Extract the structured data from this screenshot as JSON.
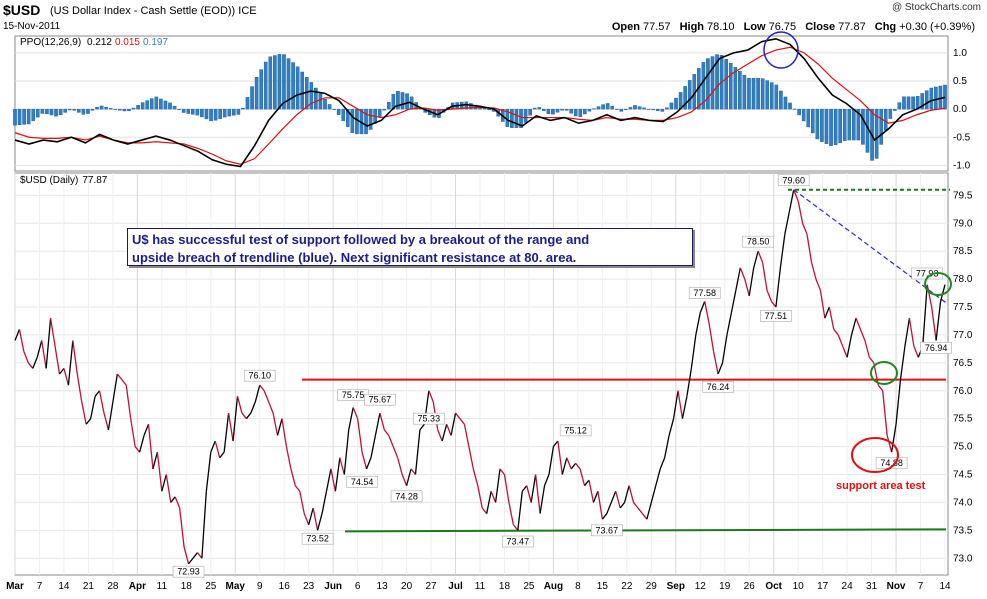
{
  "header": {
    "symbol": "$USD",
    "description": "(US Dollar Index - Cash Settle (EOD)) ICE",
    "date": "15-Nov-2011",
    "watermark": "@ StockCharts.com",
    "open_label": "Open",
    "open": "77.57",
    "high_label": "High",
    "high": "78.10",
    "low_label": "Low",
    "low": "76.75",
    "close_label": "Close",
    "close": "77.87",
    "chg_label": "Chg",
    "chg": "+0.30 (+0.39%)"
  },
  "annotation": {
    "line1": "U$ has successful test of support followed by a breakout of the range and",
    "line2": "upside breach of trendline (blue). Next significant resistance at 80. area."
  },
  "chart_data": [
    {
      "type": "line",
      "panel": "PPO",
      "legend": {
        "name": "PPO(12,26,9)",
        "ppo": "0.212",
        "signal": "0.015",
        "histogram": "0.197"
      },
      "ylim": [
        -1.1,
        1.3
      ],
      "yticks": [
        "1.0",
        "0.5",
        "0.0",
        "-0.5",
        "-1.0"
      ],
      "colors": {
        "ppo": "#000000",
        "signal": "#e01010",
        "histogram": "#2f7fc4"
      },
      "points": [
        {
          "m": 0,
          "ppo": -0.55,
          "sig": -0.42
        },
        {
          "m": 0.5,
          "ppo": -0.62,
          "sig": -0.5
        },
        {
          "m": 1,
          "ppo": -0.55,
          "sig": -0.52
        },
        {
          "m": 1.5,
          "ppo": -0.58,
          "sig": -0.52
        },
        {
          "m": 2,
          "ppo": -0.5,
          "sig": -0.5
        },
        {
          "m": 2.5,
          "ppo": -0.6,
          "sig": -0.55
        },
        {
          "m": 3,
          "ppo": -0.45,
          "sig": -0.48
        },
        {
          "m": 3.5,
          "ppo": -0.55,
          "sig": -0.55
        },
        {
          "m": 4,
          "ppo": -0.62,
          "sig": -0.6
        },
        {
          "m": 4.5,
          "ppo": -0.55,
          "sig": -0.6
        },
        {
          "m": 5,
          "ppo": -0.48,
          "sig": -0.58
        },
        {
          "m": 5.5,
          "ppo": -0.55,
          "sig": -0.6
        },
        {
          "m": 6,
          "ppo": -0.65,
          "sig": -0.62
        },
        {
          "m": 6.5,
          "ppo": -0.75,
          "sig": -0.7
        },
        {
          "m": 7,
          "ppo": -0.9,
          "sig": -0.8
        },
        {
          "m": 7.5,
          "ppo": -0.98,
          "sig": -0.92
        },
        {
          "m": 8,
          "ppo": -1.02,
          "sig": -0.98
        },
        {
          "m": 8.5,
          "ppo": -0.65,
          "sig": -0.88
        },
        {
          "m": 9,
          "ppo": -0.2,
          "sig": -0.62
        },
        {
          "m": 9.5,
          "ppo": 0.1,
          "sig": -0.35
        },
        {
          "m": 10,
          "ppo": 0.25,
          "sig": -0.1
        },
        {
          "m": 10.5,
          "ppo": 0.32,
          "sig": 0.1
        },
        {
          "m": 11,
          "ppo": 0.28,
          "sig": 0.2
        },
        {
          "m": 11.5,
          "ppo": 0.15,
          "sig": 0.2
        },
        {
          "m": 12,
          "ppo": -0.15,
          "sig": 0.05
        },
        {
          "m": 12.5,
          "ppo": -0.3,
          "sig": -0.1
        },
        {
          "m": 13,
          "ppo": -0.2,
          "sig": -0.15
        },
        {
          "m": 13.5,
          "ppo": 0.05,
          "sig": -0.1
        },
        {
          "m": 14,
          "ppo": 0.12,
          "sig": 0.0
        },
        {
          "m": 14.5,
          "ppo": 0.0,
          "sig": 0.02
        },
        {
          "m": 15,
          "ppo": -0.1,
          "sig": -0.02
        },
        {
          "m": 15.5,
          "ppo": 0.05,
          "sig": 0.0
        },
        {
          "m": 16,
          "ppo": 0.08,
          "sig": 0.02
        },
        {
          "m": 16.5,
          "ppo": 0.05,
          "sig": 0.03
        },
        {
          "m": 17,
          "ppo": 0.0,
          "sig": 0.02
        },
        {
          "m": 17.5,
          "ppo": -0.2,
          "sig": -0.05
        },
        {
          "m": 18,
          "ppo": -0.3,
          "sig": -0.15
        },
        {
          "m": 18.5,
          "ppo": -0.12,
          "sig": -0.15
        },
        {
          "m": 19,
          "ppo": -0.2,
          "sig": -0.15
        },
        {
          "m": 19.5,
          "ppo": -0.15,
          "sig": -0.15
        },
        {
          "m": 20,
          "ppo": -0.25,
          "sig": -0.18
        },
        {
          "m": 20.5,
          "ppo": -0.2,
          "sig": -0.2
        },
        {
          "m": 21,
          "ppo": -0.1,
          "sig": -0.15
        },
        {
          "m": 21.5,
          "ppo": -0.2,
          "sig": -0.18
        },
        {
          "m": 22,
          "ppo": -0.15,
          "sig": -0.18
        },
        {
          "m": 22.5,
          "ppo": -0.2,
          "sig": -0.2
        },
        {
          "m": 23,
          "ppo": -0.22,
          "sig": -0.2
        },
        {
          "m": 23.5,
          "ppo": -0.05,
          "sig": -0.15
        },
        {
          "m": 24,
          "ppo": 0.2,
          "sig": -0.05
        },
        {
          "m": 24.5,
          "ppo": 0.55,
          "sig": 0.15
        },
        {
          "m": 25,
          "ppo": 0.9,
          "sig": 0.45
        },
        {
          "m": 25.5,
          "ppo": 1.0,
          "sig": 0.65
        },
        {
          "m": 26,
          "ppo": 1.05,
          "sig": 0.8
        },
        {
          "m": 26.5,
          "ppo": 1.2,
          "sig": 0.95
        },
        {
          "m": 27,
          "ppo": 1.25,
          "sig": 1.05
        },
        {
          "m": 27.5,
          "ppo": 1.15,
          "sig": 1.1
        },
        {
          "m": 28,
          "ppo": 0.9,
          "sig": 1.0
        },
        {
          "m": 28.5,
          "ppo": 0.55,
          "sig": 0.8
        },
        {
          "m": 29,
          "ppo": 0.25,
          "sig": 0.55
        },
        {
          "m": 29.5,
          "ppo": 0.1,
          "sig": 0.35
        },
        {
          "m": 30,
          "ppo": -0.1,
          "sig": 0.15
        },
        {
          "m": 30.5,
          "ppo": -0.55,
          "sig": -0.1
        },
        {
          "m": 31,
          "ppo": -0.35,
          "sig": -0.25
        },
        {
          "m": 31.5,
          "ppo": -0.1,
          "sig": -0.2
        },
        {
          "m": 32,
          "ppo": 0.0,
          "sig": -0.1
        },
        {
          "m": 32.5,
          "ppo": 0.15,
          "sig": -0.02
        },
        {
          "m": 33,
          "ppo": 0.21,
          "sig": 0.015
        }
      ]
    },
    {
      "type": "line",
      "panel": "Price",
      "legend": {
        "name": "$USD (Daily)",
        "last": "77.87"
      },
      "ylim": [
        72.7,
        79.9
      ],
      "yticks": [
        "79.5",
        "79.0",
        "78.5",
        "78.0",
        "77.5",
        "77.0",
        "76.5",
        "76.0",
        "75.5",
        "75.0",
        "74.5",
        "74.0",
        "73.5",
        "73.0"
      ],
      "colors": {
        "up": "#000000",
        "down": "#c0103a",
        "support": "#e01010",
        "floor": "#1a7a1a",
        "trend": "#2b2bd4",
        "resistance": "#1a7a1a"
      },
      "x_labels": [
        "Mar",
        "7",
        "14",
        "21",
        "28",
        "Apr",
        "11",
        "18",
        "25",
        "May",
        "9",
        "16",
        "23",
        "Jun",
        "6",
        "13",
        "20",
        "27",
        "Jul",
        "11",
        "18",
        "25",
        "Aug",
        "8",
        "15",
        "22",
        "29",
        "Sep",
        "12",
        "19",
        "26",
        "Oct",
        "10",
        "17",
        "24",
        "31",
        "Nov",
        "7",
        "14"
      ],
      "x_label_bold": [
        "Mar",
        "Apr",
        "May",
        "Jun",
        "Jul",
        "Aug",
        "Sep",
        "Oct",
        "Nov"
      ],
      "price": [
        76.9,
        77.1,
        76.7,
        76.5,
        76.4,
        76.6,
        76.9,
        76.4,
        77.3,
        76.8,
        76.3,
        76.4,
        76.1,
        76.9,
        76.3,
        75.8,
        75.4,
        75.5,
        75.9,
        76.0,
        75.6,
        75.3,
        75.8,
        76.3,
        76.2,
        76.1,
        75.5,
        75.0,
        74.9,
        75.2,
        75.4,
        74.6,
        74.9,
        74.2,
        74.5,
        74.0,
        74.1,
        73.9,
        73.2,
        72.9,
        73.0,
        73.1,
        73.0,
        74.2,
        74.9,
        75.1,
        74.8,
        74.9,
        75.6,
        75.1,
        75.9,
        75.6,
        75.5,
        75.6,
        75.8,
        76.1,
        76.0,
        75.8,
        75.6,
        75.2,
        75.5,
        75.0,
        74.6,
        74.3,
        74.2,
        73.8,
        73.6,
        73.9,
        73.5,
        73.8,
        74.2,
        74.6,
        74.2,
        74.8,
        74.5,
        75.3,
        75.7,
        75.5,
        74.9,
        74.6,
        74.8,
        75.2,
        75.6,
        75.3,
        75.2,
        75.0,
        74.8,
        74.5,
        74.3,
        74.6,
        74.5,
        75.3,
        75.4,
        76.0,
        75.8,
        75.3,
        75.1,
        75.4,
        75.2,
        75.6,
        75.5,
        75.4,
        75.0,
        74.6,
        74.3,
        73.9,
        73.8,
        74.2,
        74.0,
        74.6,
        74.5,
        74.0,
        73.6,
        73.5,
        74.2,
        74.3,
        74.0,
        74.5,
        73.8,
        74.3,
        74.5,
        75.0,
        75.1,
        74.5,
        74.8,
        74.6,
        74.7,
        74.6,
        74.3,
        74.4,
        74.0,
        74.2,
        73.7,
        73.8,
        74.0,
        74.2,
        73.9,
        74.0,
        74.3,
        74.0,
        73.9,
        73.8,
        73.7,
        74.0,
        74.3,
        74.6,
        74.8,
        75.2,
        75.5,
        76.0,
        75.5,
        75.9,
        76.4,
        77.0,
        77.4,
        77.6,
        77.2,
        76.7,
        76.3,
        76.5,
        77.0,
        77.4,
        77.8,
        78.2,
        78.0,
        77.7,
        78.2,
        78.5,
        78.3,
        77.8,
        77.6,
        77.5,
        78.2,
        78.8,
        79.2,
        79.6,
        79.4,
        79.0,
        78.8,
        78.3,
        78.0,
        77.8,
        77.3,
        77.5,
        77.1,
        77.0,
        76.8,
        76.6,
        77.0,
        77.3,
        77.1,
        76.9,
        76.6,
        76.5,
        76.1,
        76.0,
        75.2,
        74.9,
        75.4,
        76.2,
        76.8,
        77.3,
        76.8,
        76.6,
        76.8,
        77.9,
        77.5,
        76.9,
        77.6,
        77.9
      ],
      "annotations": [
        {
          "text": "79.60",
          "i": 175,
          "v": 79.6,
          "pos": "above"
        },
        {
          "text": "78.50",
          "i": 167,
          "v": 78.5,
          "pos": "above"
        },
        {
          "text": "77.58",
          "i": 155,
          "v": 77.58,
          "pos": "above"
        },
        {
          "text": "77.51",
          "i": 171,
          "v": 77.51,
          "pos": "below"
        },
        {
          "text": "76.24",
          "i": 158,
          "v": 76.24,
          "pos": "below"
        },
        {
          "text": "77.93",
          "i": 205,
          "v": 77.93,
          "pos": "above"
        },
        {
          "text": "76.94",
          "i": 207,
          "v": 76.94,
          "pos": "below"
        },
        {
          "text": "74.88",
          "i": 197,
          "v": 74.88,
          "pos": "below"
        },
        {
          "text": "76.10",
          "i": 55,
          "v": 76.1,
          "pos": "above"
        },
        {
          "text": "75.75",
          "i": 76,
          "v": 75.75,
          "pos": "above"
        },
        {
          "text": "75.67",
          "i": 82,
          "v": 75.67,
          "pos": "above"
        },
        {
          "text": "75.33",
          "i": 93,
          "v": 75.33,
          "pos": "above"
        },
        {
          "text": "74.54",
          "i": 78,
          "v": 74.54,
          "pos": "below"
        },
        {
          "text": "74.28",
          "i": 88,
          "v": 74.28,
          "pos": "below"
        },
        {
          "text": "75.12",
          "i": 126,
          "v": 75.12,
          "pos": "above"
        },
        {
          "text": "73.52",
          "i": 68,
          "v": 73.52,
          "pos": "below"
        },
        {
          "text": "73.47",
          "i": 113,
          "v": 73.47,
          "pos": "below"
        },
        {
          "text": "73.67",
          "i": 133,
          "v": 73.67,
          "pos": "below"
        },
        {
          "text": "72.93",
          "i": 39,
          "v": 72.93,
          "pos": "below"
        }
      ],
      "support_level": 76.2,
      "floor_level": 73.5,
      "resistance_level": 79.6,
      "support_text": "support area test"
    }
  ]
}
